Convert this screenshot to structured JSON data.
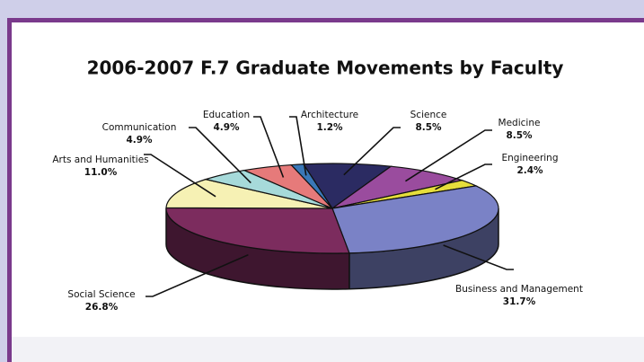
{
  "chart_data": {
    "type": "pie3d",
    "title": "2006-2007 F.7 Graduate Movements by Faculty",
    "categories": [
      "Science",
      "Medicine",
      "Engineering",
      "Business and Management",
      "Social Science",
      "Arts and Humanities",
      "Communication",
      "Education",
      "Architecture"
    ],
    "values": [
      8.5,
      8.5,
      2.4,
      31.7,
      26.8,
      11.0,
      4.9,
      4.9,
      1.2
    ],
    "value_labels": [
      "8.5%",
      "8.5%",
      "2.4%",
      "31.7%",
      "26.8%",
      "11.0%",
      "4.9%",
      "4.9%",
      "1.2%"
    ],
    "colors": [
      "#2b2b62",
      "#9a4c9e",
      "#e6de3c",
      "#7a82c6",
      "#7c2c5e",
      "#f6f1b4",
      "#a6dada",
      "#e67a7a",
      "#3a78b8"
    ]
  }
}
